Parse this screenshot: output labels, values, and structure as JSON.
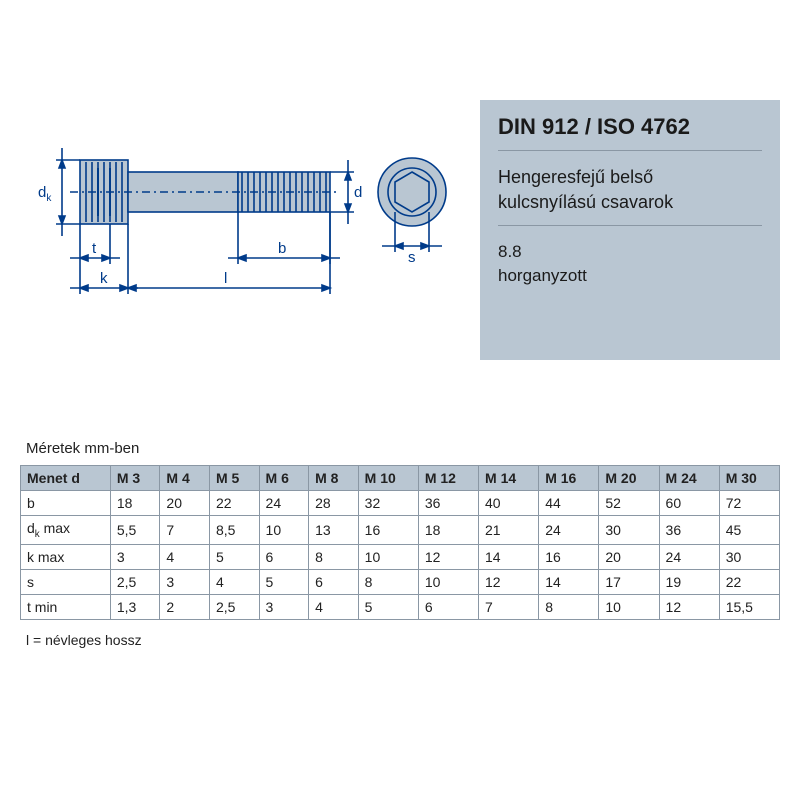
{
  "info": {
    "title": "DIN 912 / ISO 4762",
    "subtitle_line1": "Hengeresfejű belső",
    "subtitle_line2": "kulcsnyílású csavarok",
    "spec_line1": "8.8",
    "spec_line2": "horganyzott",
    "box_bg": "#b9c6d2",
    "box_divider": "#8a97a4"
  },
  "diagram": {
    "label_dk": "d",
    "label_dk_sub": "k",
    "label_t": "t",
    "label_k": "k",
    "label_l": "l",
    "label_b": "b",
    "label_d": "d",
    "label_s": "s",
    "stroke": "#003b8a",
    "fill": "#b9c6d2"
  },
  "table": {
    "units_label": "Méretek mm-ben",
    "header_first": "Menet d",
    "columns": [
      "M 3",
      "M 4",
      "M 5",
      "M 6",
      "M 8",
      "M 10",
      "M 12",
      "M 14",
      "M 16",
      "M 20",
      "M 24",
      "M 30"
    ],
    "rows": [
      {
        "label": "b",
        "label_sub": "",
        "values": [
          "18",
          "20",
          "22",
          "24",
          "28",
          "32",
          "36",
          "40",
          "44",
          "52",
          "60",
          "72"
        ]
      },
      {
        "label": "d",
        "label_sub": "k",
        "suffix": " max",
        "values": [
          "5,5",
          "7",
          "8,5",
          "10",
          "13",
          "16",
          "18",
          "21",
          "24",
          "30",
          "36",
          "45"
        ]
      },
      {
        "label": "k max",
        "label_sub": "",
        "values": [
          "3",
          "4",
          "5",
          "6",
          "8",
          "10",
          "12",
          "14",
          "16",
          "20",
          "24",
          "30"
        ]
      },
      {
        "label": "s",
        "label_sub": "",
        "values": [
          "2,5",
          "3",
          "4",
          "5",
          "6",
          "8",
          "10",
          "12",
          "14",
          "17",
          "19",
          "22"
        ]
      },
      {
        "label": "t min",
        "label_sub": "",
        "values": [
          "1,3",
          "2",
          "2,5",
          "3",
          "4",
          "5",
          "6",
          "7",
          "8",
          "10",
          "12",
          "15,5"
        ]
      }
    ],
    "header_bg": "#b9c6d2",
    "border_color": "#8a97a4",
    "text_color": "#222222"
  },
  "footnote": "l = névleges hossz"
}
